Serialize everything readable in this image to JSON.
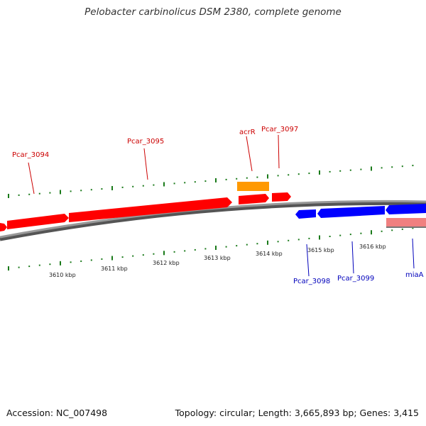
{
  "title": "Pelobacter carbinolicus DSM 2380, complete genome",
  "accession": "Accession: NC_007498",
  "summary": "Topology: circular; Length: 3,665,893 bp; Genes: 3,415",
  "colors": {
    "forward_gene": "#ff0000",
    "forward_label": "#cc0000",
    "reverse_gene": "#0000ff",
    "reverse_label": "#0000bb",
    "rna_gene": "#ff9900",
    "pseudo_gene": "#f08080",
    "backbone": "#888888",
    "tick": "#1a7a1a"
  },
  "scale_labels": [
    "3610 kbp",
    "3611 kbp",
    "3612 kbp",
    "3613 kbp",
    "3614 kbp",
    "3615 kbp",
    "3616 kbp"
  ],
  "genes": [
    {
      "label": "Pcar_3094",
      "strand": "+"
    },
    {
      "label": "Pcar_3095",
      "strand": "+"
    },
    {
      "label": "acrR",
      "strand": "+"
    },
    {
      "label": "Pcar_3097",
      "strand": "+"
    },
    {
      "label": "Pcar_3098",
      "strand": "-"
    },
    {
      "label": "Pcar_3099",
      "strand": "-"
    },
    {
      "label": "miaA",
      "strand": "-"
    }
  ]
}
